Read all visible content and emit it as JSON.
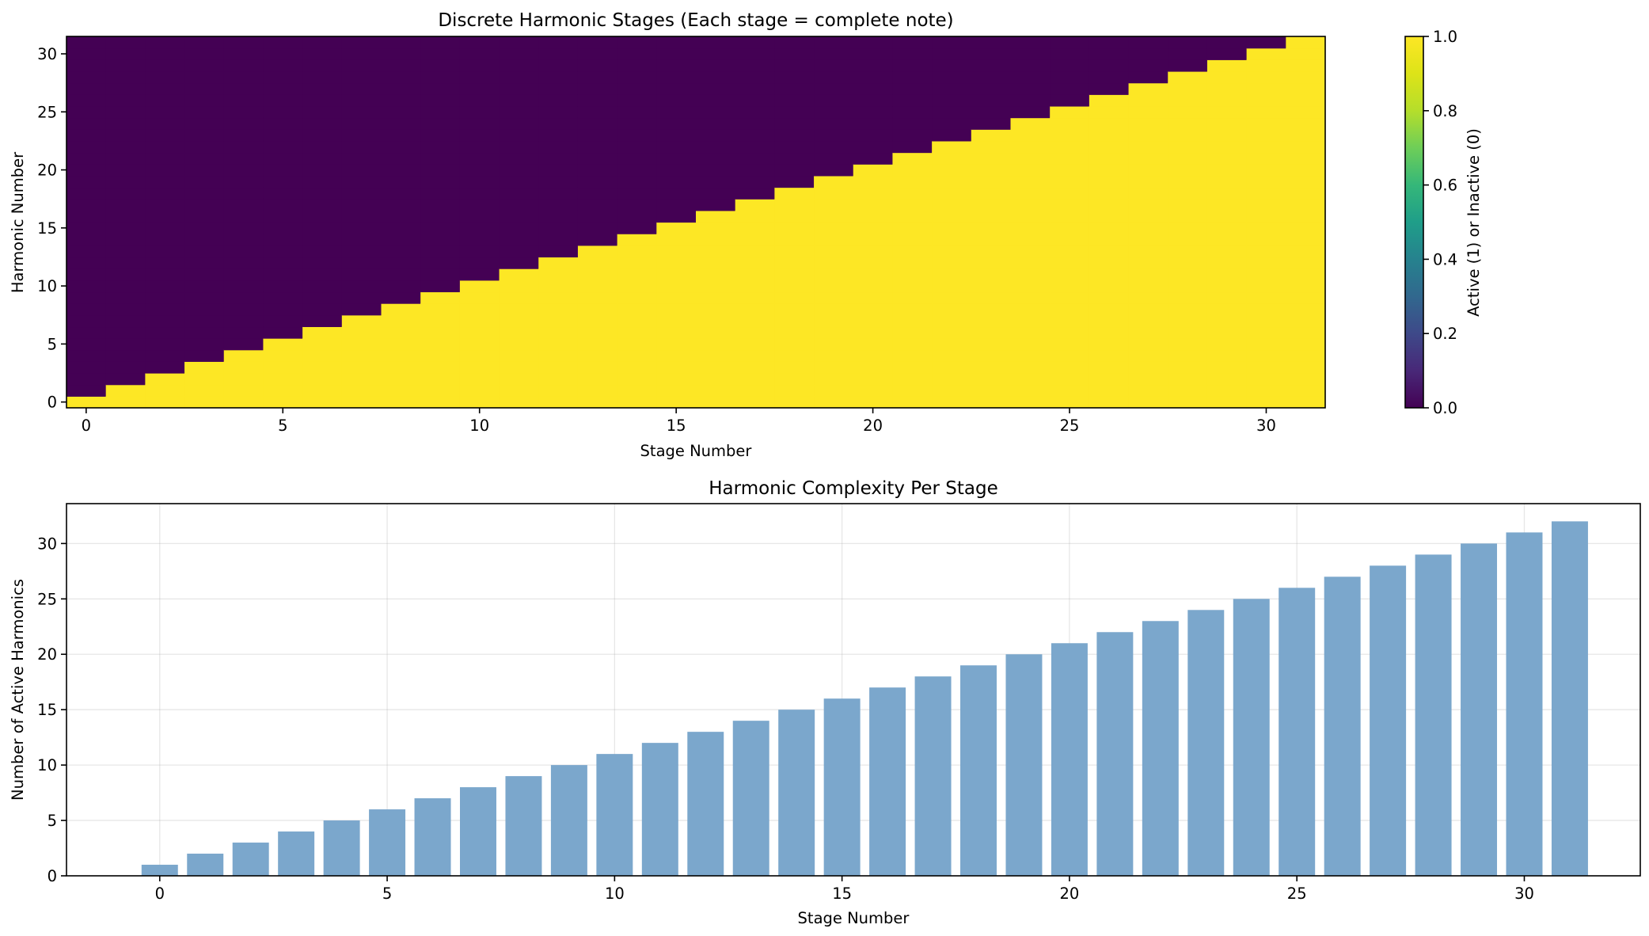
{
  "chart_data": [
    {
      "type": "heatmap",
      "title": "Discrete Harmonic Stages (Each stage = complete note)",
      "xlabel": "Stage Number",
      "ylabel": "Harmonic Number",
      "xticks": [
        0,
        5,
        10,
        15,
        20,
        25,
        30
      ],
      "yticks": [
        0,
        5,
        10,
        15,
        20,
        25,
        30
      ],
      "xlim": [
        -0.5,
        31.5
      ],
      "ylim": [
        -0.5,
        31.5
      ],
      "stages": 32,
      "harmonics": 32,
      "rule": "cell(stage, harmonic) = 1 when harmonic <= stage, else 0",
      "colormap": "viridis",
      "colors": {
        "inactive": "#440154",
        "active": "#fde725"
      },
      "colorbar": {
        "label": "Active (1) or Inactive (0)",
        "range": [
          0.0,
          1.0
        ],
        "ticks": [
          "0.0",
          "0.2",
          "0.4",
          "0.6",
          "0.8",
          "1.0"
        ]
      }
    },
    {
      "type": "bar",
      "title": "Harmonic Complexity Per Stage",
      "xlabel": "Stage Number",
      "ylabel": "Number of Active Harmonics",
      "categories": [
        0,
        1,
        2,
        3,
        4,
        5,
        6,
        7,
        8,
        9,
        10,
        11,
        12,
        13,
        14,
        15,
        16,
        17,
        18,
        19,
        20,
        21,
        22,
        23,
        24,
        25,
        26,
        27,
        28,
        29,
        30,
        31
      ],
      "values": [
        1,
        2,
        3,
        4,
        5,
        6,
        7,
        8,
        9,
        10,
        11,
        12,
        13,
        14,
        15,
        16,
        17,
        18,
        19,
        20,
        21,
        22,
        23,
        24,
        25,
        26,
        27,
        28,
        29,
        30,
        31,
        32
      ],
      "xticks": [
        0,
        5,
        10,
        15,
        20,
        25,
        30
      ],
      "yticks": [
        0,
        5,
        10,
        15,
        20,
        25,
        30
      ],
      "xlim": [
        -2.05,
        32.55
      ],
      "ylim": [
        0,
        33.6
      ],
      "grid": true,
      "bar_color": "#7ba7cc"
    }
  ]
}
